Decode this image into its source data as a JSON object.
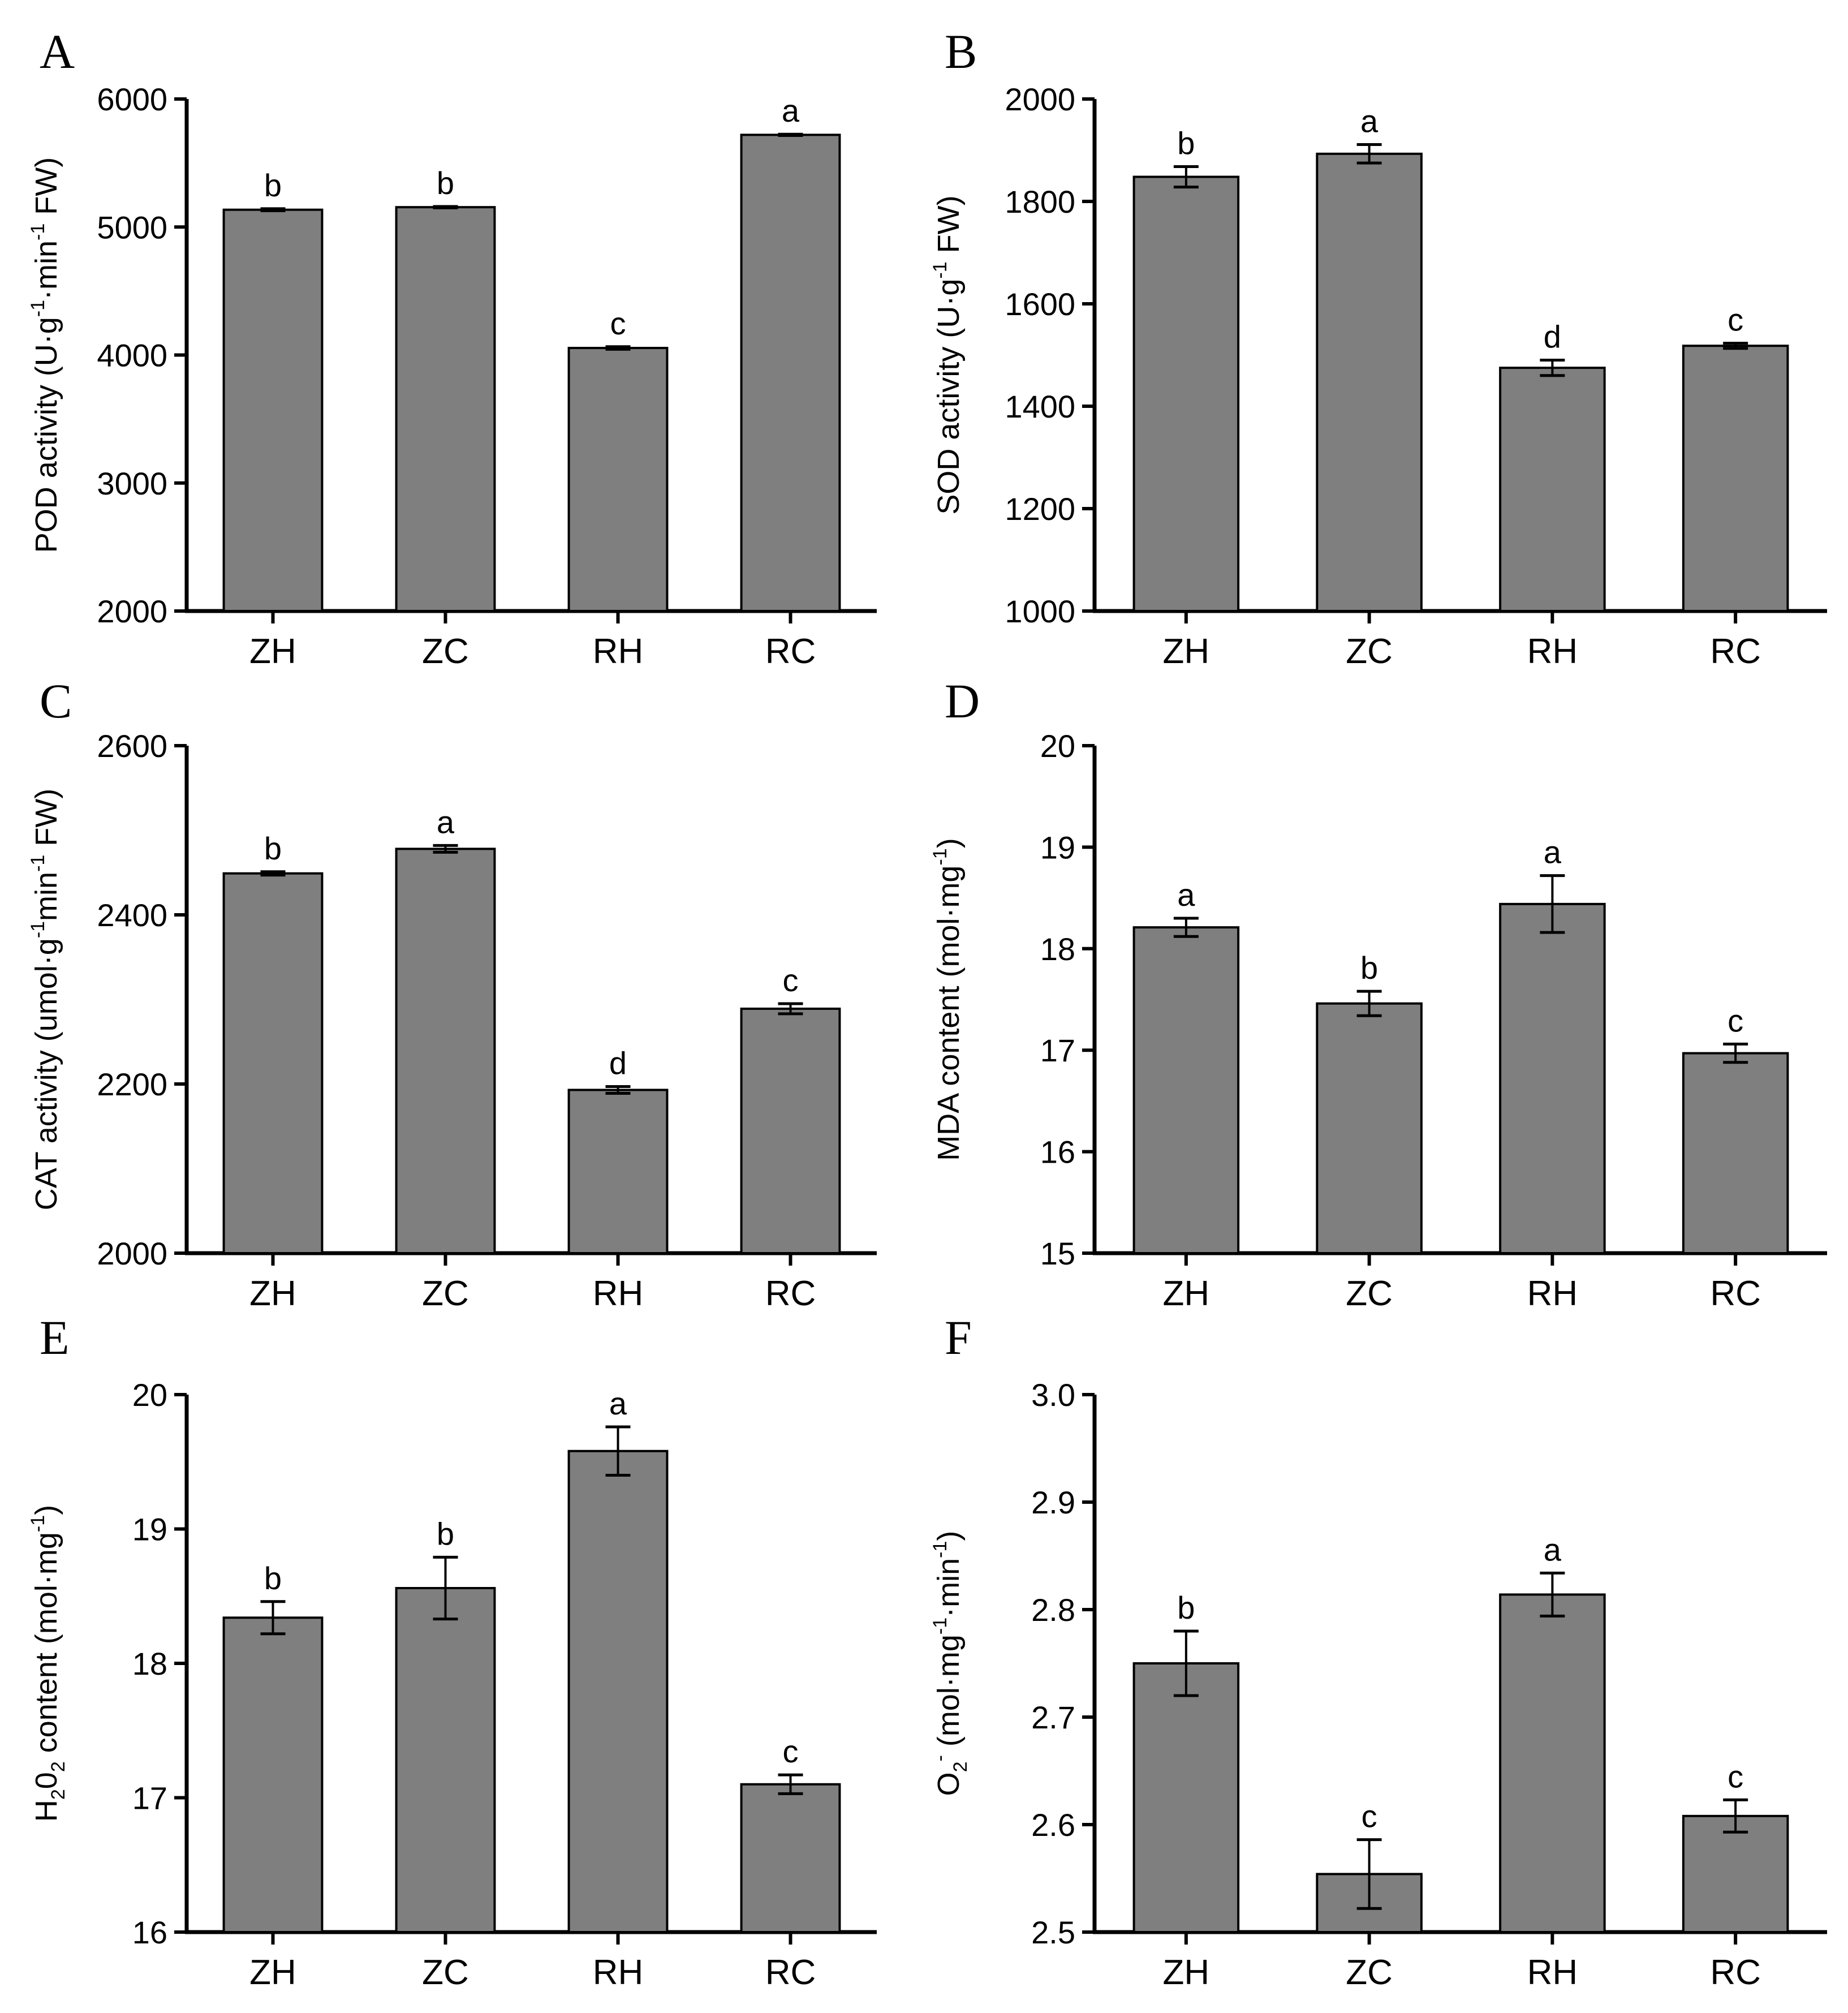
{
  "figure": {
    "colors": {
      "bar_fill": "#7f7f7f",
      "axis": "#000000",
      "background": "#ffffff"
    }
  },
  "chart_data": [
    {
      "panel": "A",
      "type": "bar",
      "categories": [
        "ZH",
        "ZC",
        "RH",
        "RC"
      ],
      "values": [
        5135,
        5155,
        4055,
        5720
      ],
      "errors": [
        8,
        5,
        10,
        5
      ],
      "significance": [
        "b",
        "b",
        "c",
        "a"
      ],
      "ylim": [
        2000,
        6000
      ],
      "yticks": [
        2000,
        3000,
        4000,
        5000,
        6000
      ],
      "ylabel": {
        "parts": [
          "POD activity (U·g",
          "-1",
          "·min",
          "-1",
          " FW)"
        ],
        "full": "POD activity (U·g-1·min-1 FW)"
      },
      "xlabel": ""
    },
    {
      "panel": "B",
      "type": "bar",
      "categories": [
        "ZH",
        "ZC",
        "RH",
        "RC"
      ],
      "values": [
        1848,
        1893,
        1475,
        1518
      ],
      "errors": [
        20,
        18,
        15,
        5
      ],
      "significance": [
        "b",
        "a",
        "d",
        "c"
      ],
      "ylim": [
        1000,
        2000
      ],
      "yticks": [
        1000,
        1200,
        1400,
        1600,
        1800,
        2000
      ],
      "ylabel": {
        "parts": [
          "SOD activity (U·g",
          "-1",
          " FW)"
        ],
        "full": "SOD activity (U·g-1 FW)"
      },
      "xlabel": ""
    },
    {
      "panel": "C",
      "type": "bar",
      "categories": [
        "ZH",
        "ZC",
        "RH",
        "RC"
      ],
      "values": [
        2449,
        2478,
        2193,
        2289
      ],
      "errors": [
        2,
        4,
        4,
        6
      ],
      "significance": [
        "b",
        "a",
        "d",
        "c"
      ],
      "ylim": [
        2000,
        2600
      ],
      "yticks": [
        2000,
        2200,
        2400,
        2600
      ],
      "ylabel": {
        "parts": [
          "CAT activity (umol·g",
          "-1",
          "min",
          "-1",
          " FW)"
        ],
        "full": "CAT activity (umol·g-1min-1 FW)"
      },
      "xlabel": ""
    },
    {
      "panel": "D",
      "type": "bar",
      "categories": [
        "ZH",
        "ZC",
        "RH",
        "RC"
      ],
      "values": [
        18.21,
        17.46,
        18.44,
        16.97
      ],
      "errors": [
        0.09,
        0.12,
        0.28,
        0.09
      ],
      "significance": [
        "a",
        "b",
        "a",
        "c"
      ],
      "ylim": [
        15,
        20
      ],
      "yticks": [
        15,
        16,
        17,
        18,
        19,
        20
      ],
      "ylabel": {
        "parts": [
          "MDA content (mol·mg",
          "-1",
          ")"
        ],
        "full": "MDA content (mol·mg-1)"
      },
      "xlabel": ""
    },
    {
      "panel": "E",
      "type": "bar",
      "categories": [
        "ZH",
        "ZC",
        "RH",
        "RC"
      ],
      "values": [
        18.34,
        18.56,
        19.58,
        17.1
      ],
      "errors": [
        0.12,
        0.23,
        0.18,
        0.07
      ],
      "significance": [
        "b",
        "b",
        "a",
        "c"
      ],
      "ylim": [
        16,
        20
      ],
      "yticks": [
        16,
        17,
        18,
        19,
        20
      ],
      "ylabel": {
        "parts": [
          "H",
          "2",
          "0",
          "2",
          " content (mol·mg",
          "-1",
          ")"
        ],
        "full": "H202 content (mol·mg-1)"
      },
      "xlabel": ""
    },
    {
      "panel": "F",
      "type": "bar",
      "categories": [
        "ZH",
        "ZC",
        "RH",
        "RC"
      ],
      "values": [
        2.75,
        2.554,
        2.814,
        2.608
      ],
      "errors": [
        0.03,
        0.032,
        0.02,
        0.015
      ],
      "significance": [
        "b",
        "c",
        "a",
        "c"
      ],
      "ylim": [
        2.5,
        3.0
      ],
      "yticks": [
        2.5,
        2.6,
        2.7,
        2.8,
        2.9,
        3.0
      ],
      "ylabel": {
        "parts": [
          "O",
          "2",
          "-",
          "  (mol·mg",
          "-1",
          "·min",
          "-1",
          ")"
        ],
        "full": "O2- (mol·mg-1·min-1)"
      },
      "xlabel": ""
    }
  ]
}
